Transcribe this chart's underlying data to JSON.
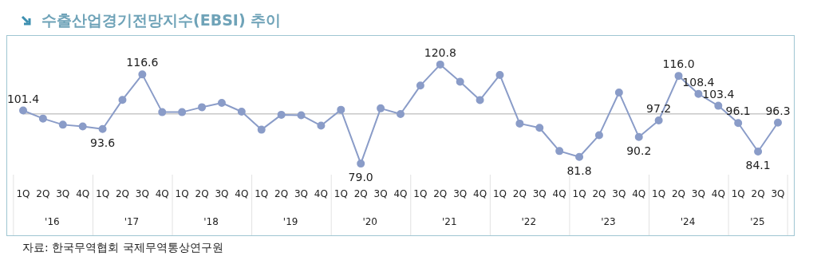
{
  "chart_data": {
    "type": "line",
    "title": "수출산업경기전망지수(EBSI) 추이",
    "categories": [
      "1Q",
      "2Q",
      "3Q",
      "4Q",
      "1Q",
      "2Q",
      "3Q",
      "4Q",
      "1Q",
      "2Q",
      "3Q",
      "4Q",
      "1Q",
      "2Q",
      "3Q",
      "4Q",
      "1Q",
      "2Q",
      "3Q",
      "4Q",
      "1Q",
      "2Q",
      "3Q",
      "4Q",
      "1Q",
      "2Q",
      "3Q",
      "4Q",
      "1Q",
      "2Q",
      "3Q",
      "4Q",
      "1Q",
      "2Q",
      "3Q",
      "4Q",
      "1Q",
      "2Q",
      "3Q"
    ],
    "values": [
      101.4,
      98.0,
      95.4,
      94.7,
      93.6,
      105.9,
      116.6,
      100.7,
      100.7,
      102.8,
      104.6,
      100.9,
      93.3,
      99.6,
      99.4,
      95.0,
      101.7,
      79.0,
      102.3,
      99.9,
      111.9,
      120.8,
      113.5,
      105.8,
      116.4,
      95.9,
      94.1,
      84.3,
      81.8,
      91.0,
      109.0,
      90.2,
      97.2,
      116.0,
      108.4,
      103.4,
      96.1,
      84.1,
      96.3
    ],
    "value_labels": [
      "101.4",
      null,
      null,
      null,
      "93.6",
      null,
      "116.6",
      null,
      null,
      null,
      null,
      null,
      null,
      null,
      null,
      null,
      null,
      "79.0",
      null,
      null,
      null,
      "120.8",
      null,
      null,
      null,
      null,
      null,
      null,
      "81.8",
      null,
      null,
      "90.2",
      "97.2",
      "116.0",
      "108.4",
      "103.4",
      "96.1",
      "84.1",
      "96.3"
    ],
    "color": "#8a9cc8",
    "marker": "circle",
    "ref_lines": [
      {
        "axis": "y",
        "value": 100,
        "color": "#c8c8c8"
      }
    ],
    "annotations": [
      "'16",
      "'17",
      "'18",
      "'19",
      "'20",
      "'21",
      "'22",
      "'23",
      "'24",
      "'25",
      "자료: 한국무역협회 국제무역통상연구원"
    ]
  }
}
